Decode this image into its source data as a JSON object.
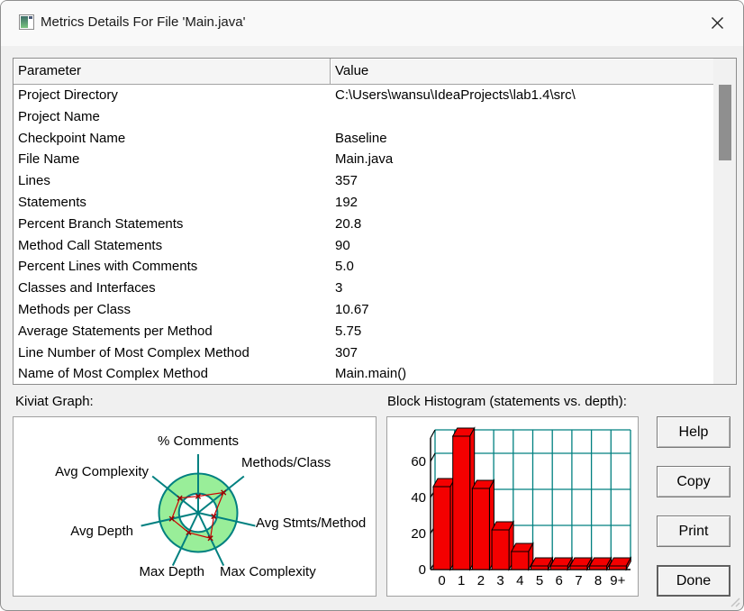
{
  "window": {
    "title": "Metrics Details For File 'Main.java'",
    "icon": "sourcemonitor-app-icon",
    "close": "close"
  },
  "table": {
    "columns": [
      "Parameter",
      "Value"
    ],
    "rows": [
      {
        "param": "Project Directory",
        "value": "C:\\Users\\wansu\\IdeaProjects\\lab1.4\\src\\"
      },
      {
        "param": "Project Name",
        "value": ""
      },
      {
        "param": "Checkpoint Name",
        "value": "Baseline"
      },
      {
        "param": "File Name",
        "value": "Main.java"
      },
      {
        "param": "Lines",
        "value": "357"
      },
      {
        "param": "Statements",
        "value": "192"
      },
      {
        "param": "Percent Branch Statements",
        "value": "20.8"
      },
      {
        "param": "Method Call Statements",
        "value": "90"
      },
      {
        "param": "Percent Lines with Comments",
        "value": "5.0"
      },
      {
        "param": "Classes and Interfaces",
        "value": "3"
      },
      {
        "param": "Methods per Class",
        "value": "10.67"
      },
      {
        "param": "Average Statements per Method",
        "value": "5.75"
      },
      {
        "param": "Line Number of Most Complex Method",
        "value": "307"
      },
      {
        "param": "Name of Most Complex Method",
        "value": "Main.main()"
      }
    ]
  },
  "sections": {
    "kiviat_label": "Kiviat Graph:",
    "histogram_label": "Block Histogram (statements vs. depth):"
  },
  "buttons": {
    "help": "Help",
    "copy": "Copy",
    "print": "Print",
    "done": "Done"
  },
  "colors": {
    "teal": "#008080",
    "ring_green": "#99ee99",
    "bar_red": "#f40000",
    "red_line": "#cc0000",
    "dialog_bg": "#f0f0f0",
    "scroll_thumb": "#8f8f8f"
  },
  "chart_data": [
    {
      "id": "kiviat",
      "type": "radar",
      "title": "Kiviat Graph:",
      "axes": [
        "% Comments",
        "Methods/Class",
        "Avg Stmts/Method",
        "Max Complexity",
        "Max Depth",
        "Avg Depth",
        "Avg Complexity"
      ],
      "values_fraction_of_outer_circle": [
        0.42,
        0.83,
        0.41,
        0.72,
        0.56,
        0.69,
        0.6
      ],
      "ring": {
        "inner_fraction": 0.49,
        "outer_fraction": 1.0
      },
      "legend": "none",
      "grid": "ring"
    },
    {
      "id": "block-histogram",
      "type": "bar",
      "title": "Block Histogram (statements vs. depth):",
      "categories": [
        "0",
        "1",
        "2",
        "3",
        "4",
        "5",
        "6",
        "7",
        "8",
        "9+"
      ],
      "values": [
        46,
        74,
        45,
        22,
        10,
        2,
        2,
        2,
        2,
        2
      ],
      "xlabel": "",
      "ylabel": "",
      "yticks": [
        0,
        20,
        40,
        60
      ],
      "ylim": [
        0,
        73
      ],
      "grid": "on",
      "style": "3d-blocks"
    }
  ]
}
